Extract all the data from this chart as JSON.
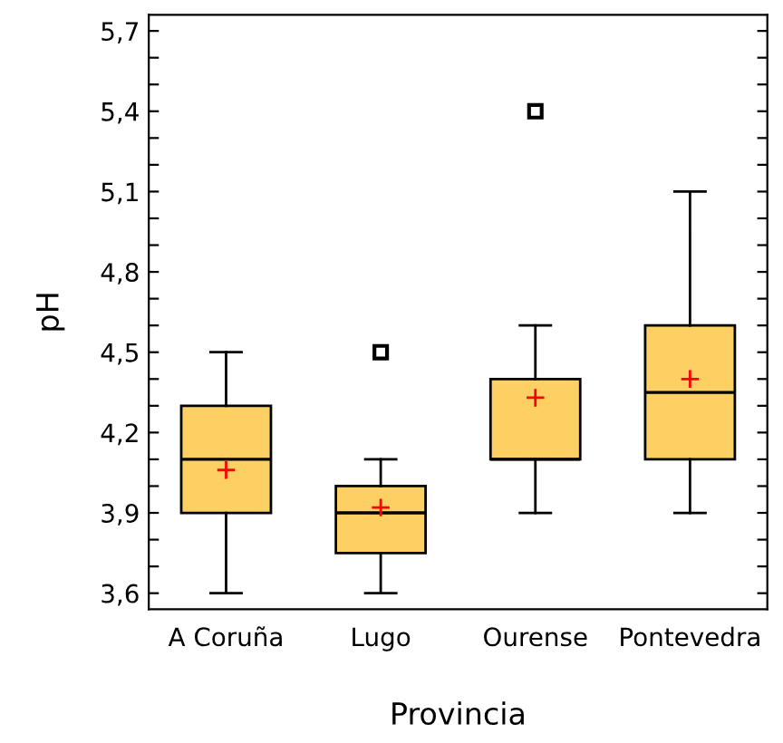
{
  "chart_data": {
    "type": "box",
    "xlabel": "Provincia",
    "ylabel": "pH",
    "categories": [
      "A Coruña",
      "Lugo",
      "Ourense",
      "Pontevedra"
    ],
    "series": [
      {
        "color": "#fcd062",
        "boxes": [
          {
            "low": 3.6,
            "q1": 3.9,
            "median": 4.1,
            "q3": 4.3,
            "high": 4.5,
            "mean": 4.06
          },
          {
            "low": 3.6,
            "q1": 3.75,
            "median": 3.9,
            "q3": 4.0,
            "high": 4.1,
            "mean": 3.92,
            "outliers": [
              4.5
            ]
          },
          {
            "low": 3.9,
            "q1": 4.1,
            "median": 4.1,
            "q3": 4.4,
            "high": 4.6,
            "mean": 4.33,
            "outliers": [
              5.4
            ]
          },
          {
            "low": 3.9,
            "q1": 4.1,
            "median": 4.35,
            "q3": 4.6,
            "high": 5.1,
            "mean": 4.4
          }
        ]
      }
    ],
    "ylim": [
      3.54,
      5.76
    ],
    "yticks": [
      {
        "value": 3.6,
        "label": "3,6"
      },
      {
        "value": 3.7,
        "label": null
      },
      {
        "value": 3.8,
        "label": null
      },
      {
        "value": 3.9,
        "label": "3,9"
      },
      {
        "value": 4.0,
        "label": null
      },
      {
        "value": 4.1,
        "label": null
      },
      {
        "value": 4.2,
        "label": "4,2"
      },
      {
        "value": 4.3,
        "label": null
      },
      {
        "value": 4.4,
        "label": null
      },
      {
        "value": 4.5,
        "label": "4,5"
      },
      {
        "value": 4.6,
        "label": null
      },
      {
        "value": 4.7,
        "label": null
      },
      {
        "value": 4.8,
        "label": "4,8"
      },
      {
        "value": 4.9,
        "label": null
      },
      {
        "value": 5.0,
        "label": null
      },
      {
        "value": 5.1,
        "label": "5,1"
      },
      {
        "value": 5.2,
        "label": null
      },
      {
        "value": 5.3,
        "label": null
      },
      {
        "value": 5.4,
        "label": "5,4"
      },
      {
        "value": 5.5,
        "label": null
      },
      {
        "value": 5.6,
        "label": null
      },
      {
        "value": 5.7,
        "label": "5,7"
      }
    ],
    "grid": false
  }
}
